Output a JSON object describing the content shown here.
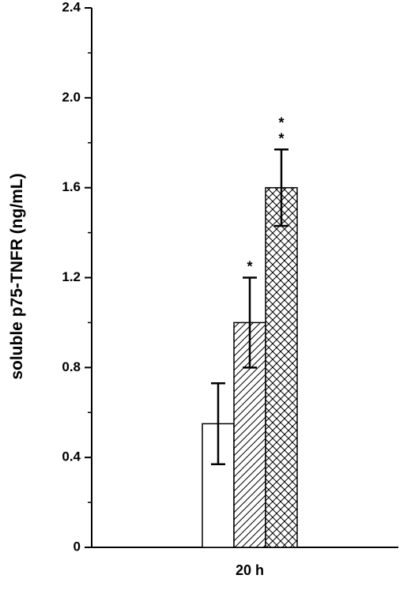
{
  "chart_data": {
    "type": "bar",
    "y_label": "soluble p75-TNFR (ng/mL)",
    "categories": [
      "20 h"
    ],
    "series": [
      {
        "color": "#ffffff",
        "pattern": "none",
        "values": [
          0.55
        ],
        "errors": [
          0.18
        ]
      },
      {
        "color": "#ffffff",
        "pattern": "diagonal",
        "values": [
          1.0
        ],
        "errors": [
          0.2
        ],
        "annotations": [
          "*"
        ]
      },
      {
        "color": "#ffffff",
        "pattern": "crosshatch",
        "values": [
          1.6
        ],
        "errors": [
          0.17
        ],
        "annotations": [
          "*",
          "*"
        ]
      }
    ],
    "ylim": [
      0,
      2.4
    ],
    "yticks": [
      0,
      0.4,
      0.8,
      1.2,
      1.6,
      {
        "value": 2,
        "label": "2.0"
      },
      2.4
    ],
    "yminorticks": [
      0.2,
      0.6,
      1.0,
      1.4,
      1.8,
      2.2
    ]
  }
}
